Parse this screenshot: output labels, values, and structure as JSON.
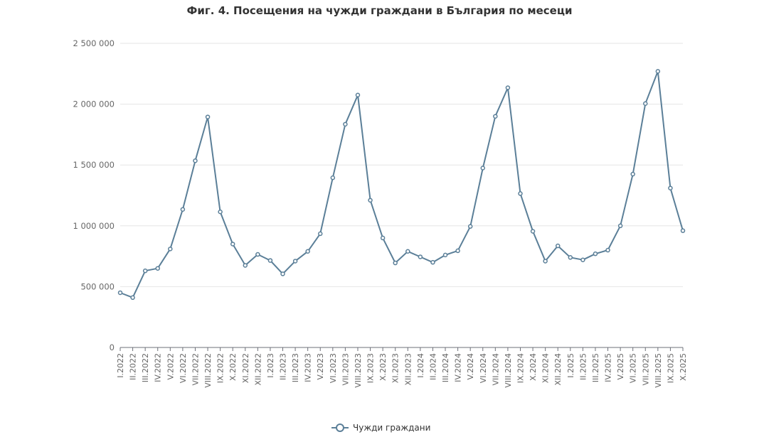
{
  "chart_data": {
    "type": "line",
    "title": "Фиг. 4. Посещения на чужди граждани в България по месеци",
    "xlabel": "",
    "ylabel": "",
    "ylim": [
      0,
      2500000
    ],
    "y_ticks": [
      0,
      500000,
      1000000,
      1500000,
      2000000,
      2500000
    ],
    "y_tick_labels": [
      "0",
      "500 000",
      "1 000 000",
      "1 500 000",
      "2 000 000",
      "2 500 000"
    ],
    "grid": true,
    "legend_position": "bottom-center",
    "line_color": "#5b7f98",
    "categories": [
      "I.2022",
      "II.2022",
      "III.2022",
      "IV.2022",
      "V.2022",
      "VI.2022",
      "VII.2022",
      "VIII.2022",
      "IX.2022",
      "X.2022",
      "XI.2022",
      "XII.2022",
      "I.2023",
      "II.2023",
      "III.2023",
      "IV.2023",
      "V.2023",
      "VI.2023",
      "VII.2023",
      "VIII.2023",
      "IX.2023",
      "X.2023",
      "XI.2023",
      "XII.2023",
      "I.2024",
      "II.2024",
      "III.2024",
      "IV.2024",
      "V.2024",
      "VI.2024",
      "VII.2024",
      "VIII.2024",
      "IX.2024",
      "X.2024",
      "XI.2024",
      "XII.2024",
      "I.2025",
      "II.2025",
      "III.2025",
      "IV.2025",
      "V.2025",
      "VI.2025",
      "VII.2025",
      "VIII.2025",
      "IX.2025",
      "X.2025"
    ],
    "series": [
      {
        "name": "Чужди граждани",
        "values": [
          450000,
          410000,
          630000,
          650000,
          810000,
          1135000,
          1535000,
          1895000,
          1115000,
          850000,
          675000,
          765000,
          715000,
          605000,
          710000,
          790000,
          935000,
          1395000,
          1835000,
          2075000,
          1210000,
          900000,
          695000,
          790000,
          745000,
          700000,
          760000,
          795000,
          995000,
          1475000,
          1900000,
          2135000,
          1265000,
          955000,
          710000,
          835000,
          740000,
          720000,
          770000,
          800000,
          1000000,
          1425000,
          2005000,
          2270000,
          1310000,
          960000
        ]
      }
    ]
  }
}
